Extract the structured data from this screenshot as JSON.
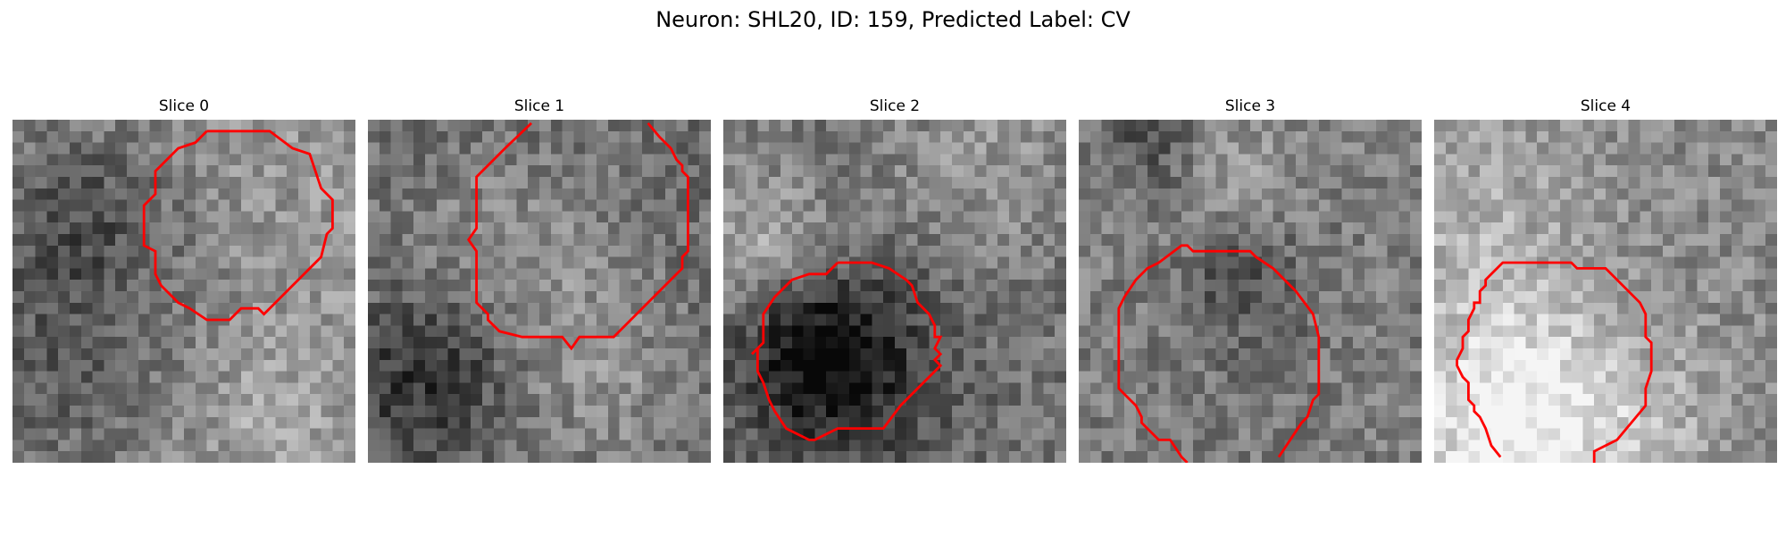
{
  "figure": {
    "title": "Neuron: SHL20, ID: 159, Predicted Label: CV"
  },
  "panels": [
    {
      "title": "Slice 0",
      "seed": 11,
      "base": 150,
      "contrast": 55
    },
    {
      "title": "Slice 1",
      "seed": 23,
      "base": 105,
      "contrast": 60
    },
    {
      "title": "Slice 2",
      "seed": 37,
      "base": 115,
      "contrast": 70
    },
    {
      "title": "Slice 3",
      "seed": 49,
      "base": 125,
      "contrast": 75
    },
    {
      "title": "Slice 4",
      "seed": 61,
      "base": 135,
      "contrast": 70
    }
  ],
  "colors": {
    "contour": "#ff0000",
    "background": "#ffffff"
  }
}
